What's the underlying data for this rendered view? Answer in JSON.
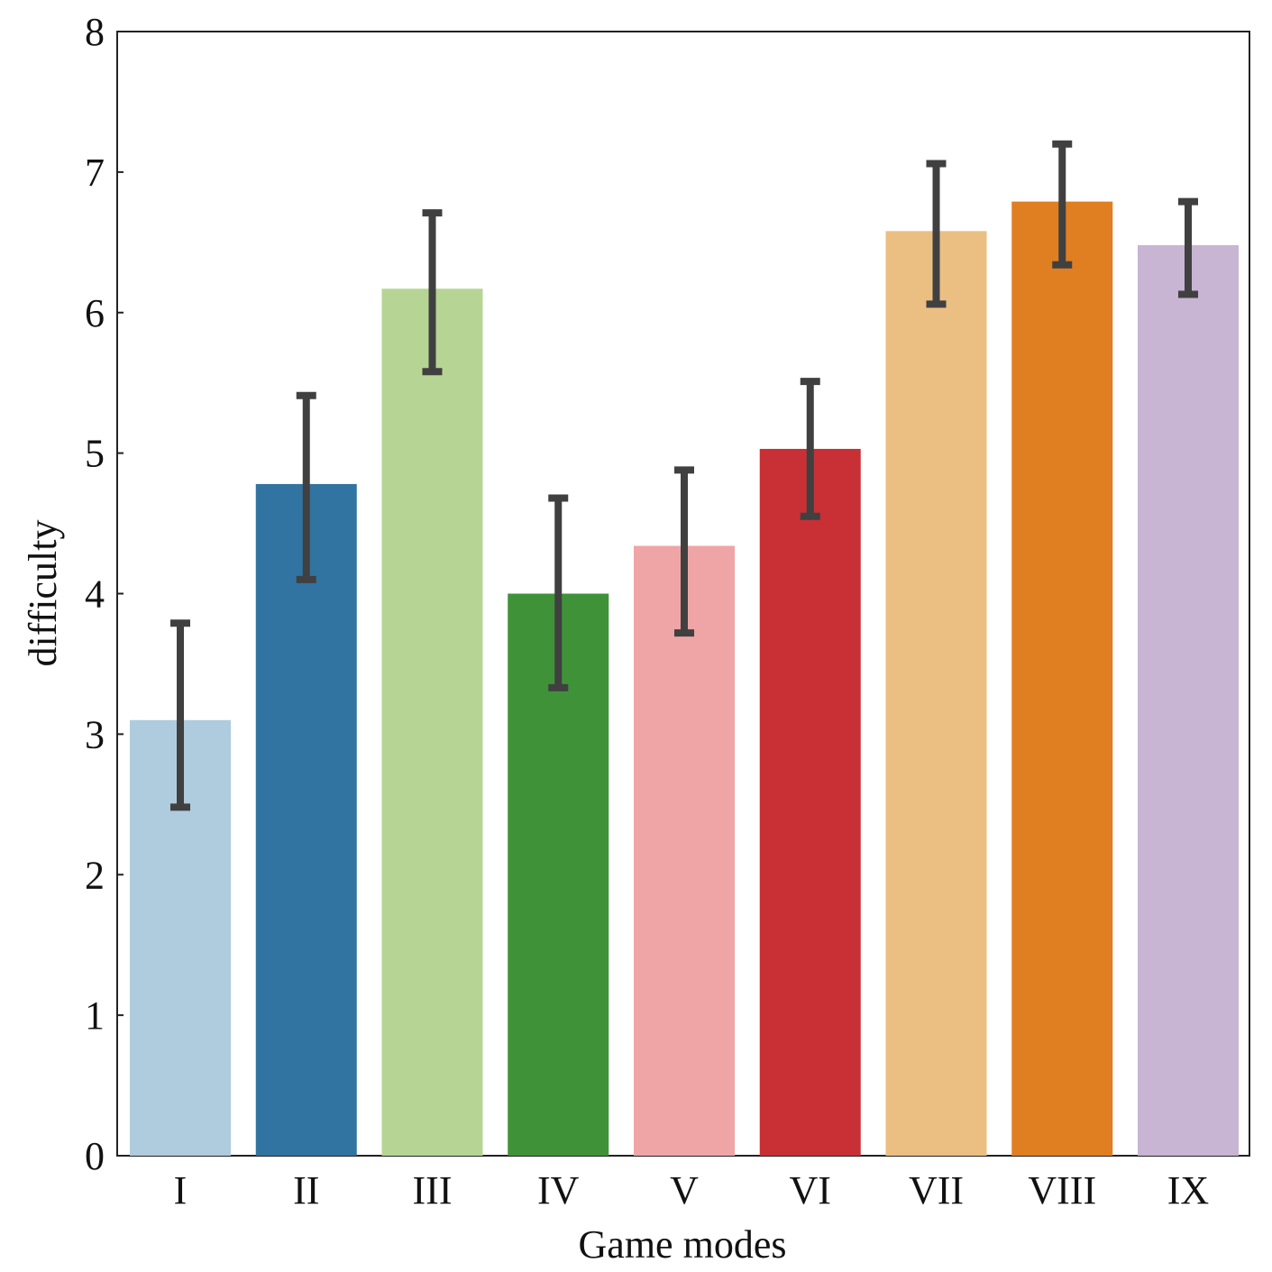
{
  "chart_data": {
    "type": "bar",
    "title": "",
    "xlabel": "Game modes",
    "ylabel": "difficulty",
    "categories": [
      "I",
      "II",
      "III",
      "IV",
      "V",
      "VI",
      "VII",
      "VIII",
      "IX"
    ],
    "values": [
      3.1,
      4.78,
      6.17,
      4.0,
      4.34,
      5.03,
      6.58,
      6.79,
      6.48
    ],
    "error_low": [
      2.48,
      4.1,
      5.58,
      3.33,
      3.72,
      4.55,
      6.06,
      6.34,
      6.13
    ],
    "error_high": [
      3.79,
      5.41,
      6.71,
      4.68,
      4.88,
      5.51,
      7.06,
      7.2,
      6.79
    ],
    "colors": [
      "#afcbde",
      "#3174a1",
      "#b6d594",
      "#409239",
      "#efa5a5",
      "#c83036",
      "#ebbe82",
      "#e07e22",
      "#c7b5d3"
    ],
    "error_color": "#404040",
    "ylim": [
      0,
      8
    ],
    "yticks": [
      "0",
      "1",
      "2",
      "3",
      "4",
      "5",
      "6",
      "7",
      "8"
    ],
    "grid": false,
    "legend": "none"
  }
}
